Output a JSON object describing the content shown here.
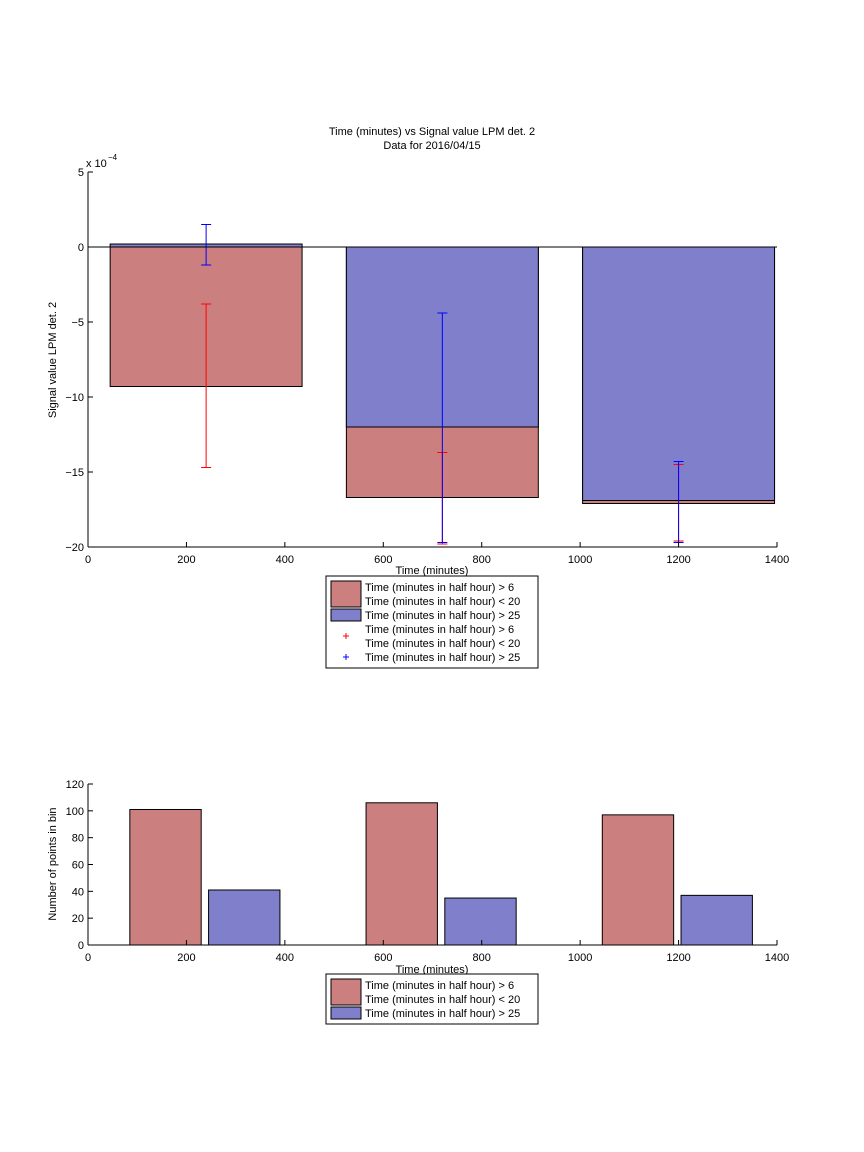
{
  "colors": {
    "red_fill": "#cc7f7f",
    "blue_fill": "#7f7fcc",
    "red_err": "#ff0000",
    "blue_err": "#0000ff"
  },
  "chart_data": [
    {
      "type": "bar",
      "title": "Time (minutes) vs Signal value LPM det. 2",
      "subtitle": "Data for 2016/04/15",
      "xlabel": "Time (minutes)",
      "ylabel": "Signal value LPM det. 2",
      "exponent_label": "x 10",
      "exponent_power": "−4",
      "xlim": [
        0,
        1400
      ],
      "ylim": [
        -20,
        5
      ],
      "xticks": [
        0,
        200,
        400,
        600,
        800,
        1000,
        1200,
        1400
      ],
      "yticks": [
        5,
        0,
        -5,
        -10,
        -15,
        -20
      ],
      "ytick_labels": [
        "5",
        "0",
        "−5",
        "−10",
        "−15",
        "−20"
      ],
      "grid": false,
      "legend_position": "below",
      "categories": [
        240,
        720,
        1200
      ],
      "bar_width": 390,
      "series": [
        {
          "name": "Time (minutes in half hour) > 6\nTime (minutes in half hour) < 20",
          "values": [
            -9.3,
            -16.7,
            -17.1
          ],
          "color": "#cc7f7f"
        },
        {
          "name": "Time (minutes in half hour) > 25",
          "values": [
            0.2,
            -12.0,
            -16.9
          ],
          "color": "#7f7fcc"
        }
      ],
      "error_bars": [
        {
          "name": "Time (minutes in half hour) > 6\nTime (minutes in half hour) < 20",
          "color": "#ff0000",
          "x": [
            240,
            720,
            1200
          ],
          "lower": [
            -14.7,
            -19.8,
            -19.6
          ],
          "upper": [
            -3.8,
            -13.7,
            -14.5
          ]
        },
        {
          "name": "Time (minutes in half hour) > 25",
          "color": "#0000ff",
          "x": [
            240,
            720,
            1200
          ],
          "lower": [
            -1.2,
            -19.7,
            -19.7
          ],
          "upper": [
            1.5,
            -4.4,
            -14.3
          ]
        }
      ],
      "legend": [
        {
          "kind": "patch",
          "color": "#cc7f7f",
          "lines": [
            "Time (minutes in half hour) > 6",
            "Time (minutes in half hour) < 20"
          ]
        },
        {
          "kind": "patch",
          "color": "#7f7fcc",
          "lines": [
            "Time (minutes in half hour) > 25"
          ]
        },
        {
          "kind": "marker",
          "color": "#ff0000",
          "lines": [
            "Time (minutes in half hour) > 6",
            "Time (minutes in half hour) < 20"
          ]
        },
        {
          "kind": "marker",
          "color": "#0000ff",
          "lines": [
            "Time (minutes in half hour) > 25"
          ]
        }
      ]
    },
    {
      "type": "bar",
      "xlabel": "Time (minutes)",
      "ylabel": "Number of points in bin",
      "xlim": [
        0,
        1400
      ],
      "ylim": [
        0,
        120
      ],
      "xticks": [
        0,
        200,
        400,
        600,
        800,
        1000,
        1200,
        1400
      ],
      "yticks": [
        120,
        100,
        80,
        60,
        40,
        20,
        0
      ],
      "ytick_labels": [
        "120",
        "100",
        "80",
        "60",
        "40",
        "20",
        "0"
      ],
      "grid": false,
      "legend_position": "below",
      "bars": [
        {
          "x_start": 85,
          "x_end": 230,
          "value": 101,
          "color": "#cc7f7f"
        },
        {
          "x_start": 245,
          "x_end": 390,
          "value": 41,
          "color": "#7f7fcc"
        },
        {
          "x_start": 565,
          "x_end": 710,
          "value": 106,
          "color": "#cc7f7f"
        },
        {
          "x_start": 725,
          "x_end": 870,
          "value": 35,
          "color": "#7f7fcc"
        },
        {
          "x_start": 1045,
          "x_end": 1190,
          "value": 97,
          "color": "#cc7f7f"
        },
        {
          "x_start": 1205,
          "x_end": 1350,
          "value": 37,
          "color": "#7f7fcc"
        }
      ],
      "legend": [
        {
          "kind": "patch",
          "color": "#cc7f7f",
          "lines": [
            "Time (minutes in half hour) > 6",
            "Time (minutes in half hour) < 20"
          ]
        },
        {
          "kind": "patch",
          "color": "#7f7fcc",
          "lines": [
            "Time (minutes in half hour) > 25"
          ]
        }
      ]
    }
  ]
}
